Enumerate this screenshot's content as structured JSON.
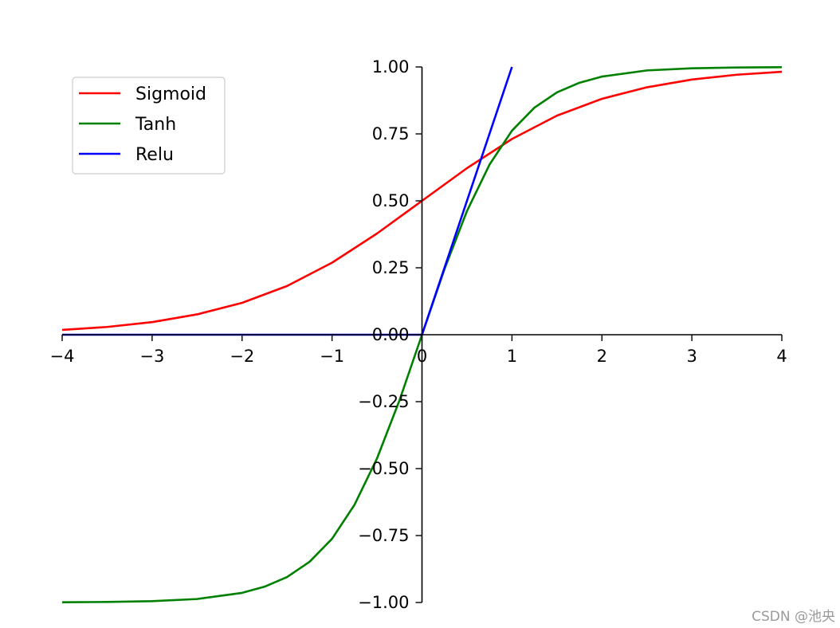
{
  "chart_data": {
    "type": "line",
    "xlim": [
      -4,
      4
    ],
    "ylim": [
      -1,
      1
    ],
    "x_ticks": [
      -4,
      -3,
      -2,
      -1,
      0,
      1,
      2,
      3,
      4
    ],
    "x_tick_labels": [
      "−4",
      "−3",
      "−2",
      "−1",
      "0",
      "1",
      "2",
      "3",
      "4"
    ],
    "y_ticks": [
      -1,
      -0.75,
      -0.5,
      -0.25,
      0,
      0.25,
      0.5,
      0.75,
      1
    ],
    "y_tick_labels": [
      "−1.00",
      "−0.75",
      "−0.50",
      "−0.25",
      "0.00",
      "0.25",
      "0.50",
      "0.75",
      "1.00"
    ],
    "spines": "centered at origin",
    "grid": false,
    "legend_position": "top-left",
    "series": [
      {
        "name": "Sigmoid",
        "color": "#ff0000",
        "x": [
          -4,
          -3.5,
          -3,
          -2.5,
          -2,
          -1.5,
          -1,
          -0.5,
          0,
          0.5,
          1,
          1.5,
          2,
          2.5,
          3,
          3.5,
          4
        ],
        "y": [
          0.018,
          0.029,
          0.047,
          0.076,
          0.119,
          0.182,
          0.269,
          0.378,
          0.5,
          0.622,
          0.731,
          0.818,
          0.881,
          0.924,
          0.953,
          0.971,
          0.982
        ]
      },
      {
        "name": "Tanh",
        "color": "#008000",
        "x": [
          -4,
          -3.5,
          -3,
          -2.5,
          -2,
          -1.75,
          -1.5,
          -1.25,
          -1,
          -0.75,
          -0.5,
          -0.25,
          0,
          0.25,
          0.5,
          0.75,
          1,
          1.25,
          1.5,
          1.75,
          2,
          2.5,
          3,
          3.5,
          4
        ],
        "y": [
          -0.999,
          -0.998,
          -0.995,
          -0.987,
          -0.964,
          -0.941,
          -0.905,
          -0.848,
          -0.762,
          -0.635,
          -0.462,
          -0.245,
          0,
          0.245,
          0.462,
          0.635,
          0.762,
          0.848,
          0.905,
          0.941,
          0.964,
          0.987,
          0.995,
          0.998,
          0.999
        ]
      },
      {
        "name": "Relu",
        "color": "#0000ff",
        "x": [
          -4,
          0,
          1
        ],
        "y": [
          0,
          0,
          1
        ]
      }
    ]
  },
  "watermark": "CSDN @池央"
}
